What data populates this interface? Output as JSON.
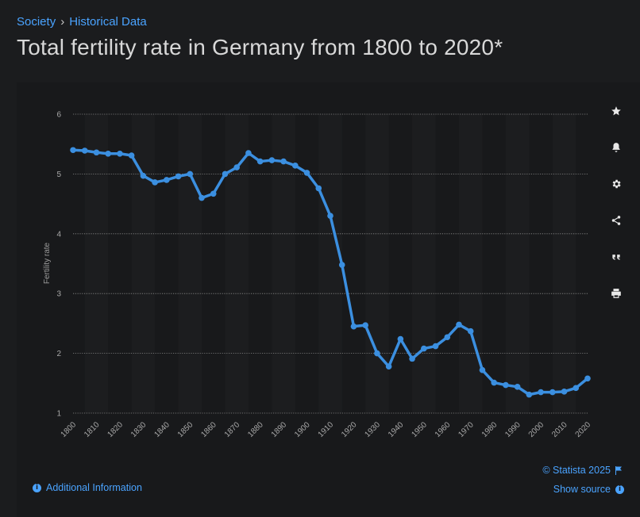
{
  "breadcrumb": {
    "items": [
      "Society",
      "Historical Data"
    ],
    "separator": "›"
  },
  "title": "Total fertility rate in Germany from 1800 to 2020*",
  "toolbar": {
    "icons": [
      "star-icon",
      "bell-icon",
      "gear-icon",
      "share-icon",
      "quote-icon",
      "print-icon"
    ]
  },
  "footer": {
    "copyright": "© Statista 2025",
    "show_source": "Show source",
    "additional_info": "Additional Information"
  },
  "colors": {
    "line": "#3b8fe0",
    "accent": "#4aa3ff",
    "grid": "#8a8a8a",
    "background": "#1b1c1e"
  },
  "chart_data": {
    "type": "line",
    "ylabel": "Fertility rate",
    "xlabel": "",
    "ylim": [
      1,
      6
    ],
    "yticks": [
      1,
      2,
      3,
      4,
      5,
      6
    ],
    "xlim": [
      1800,
      2020
    ],
    "xticks": [
      1800,
      1810,
      1820,
      1830,
      1840,
      1850,
      1860,
      1870,
      1880,
      1890,
      1900,
      1910,
      1920,
      1930,
      1940,
      1950,
      1960,
      1970,
      1980,
      1990,
      2000,
      2010,
      2020
    ],
    "grid": "horizontal-dotted",
    "series": [
      {
        "x": [
          1800,
          1805,
          1810,
          1815,
          1820,
          1825,
          1830,
          1835,
          1840,
          1845,
          1850,
          1855,
          1860,
          1865,
          1870,
          1875,
          1880,
          1885,
          1890,
          1895,
          1900,
          1905,
          1910,
          1915,
          1920,
          1925,
          1930,
          1935,
          1940,
          1945,
          1950,
          1955,
          1960,
          1965,
          1970,
          1975,
          1980,
          1985,
          1990,
          1995,
          2000,
          2005,
          2010,
          2015,
          2020
        ],
        "values": [
          5.4,
          5.39,
          5.36,
          5.34,
          5.34,
          5.31,
          4.97,
          4.86,
          4.9,
          4.96,
          5.0,
          4.6,
          4.67,
          5.0,
          5.11,
          5.35,
          5.21,
          5.23,
          5.21,
          5.14,
          5.02,
          4.76,
          4.3,
          3.48,
          2.45,
          2.47,
          2.0,
          1.78,
          2.24,
          1.91,
          2.08,
          2.12,
          2.27,
          2.48,
          2.37,
          1.72,
          1.51,
          1.47,
          1.44,
          1.31,
          1.35,
          1.35,
          1.36,
          1.42,
          1.58
        ]
      }
    ]
  }
}
